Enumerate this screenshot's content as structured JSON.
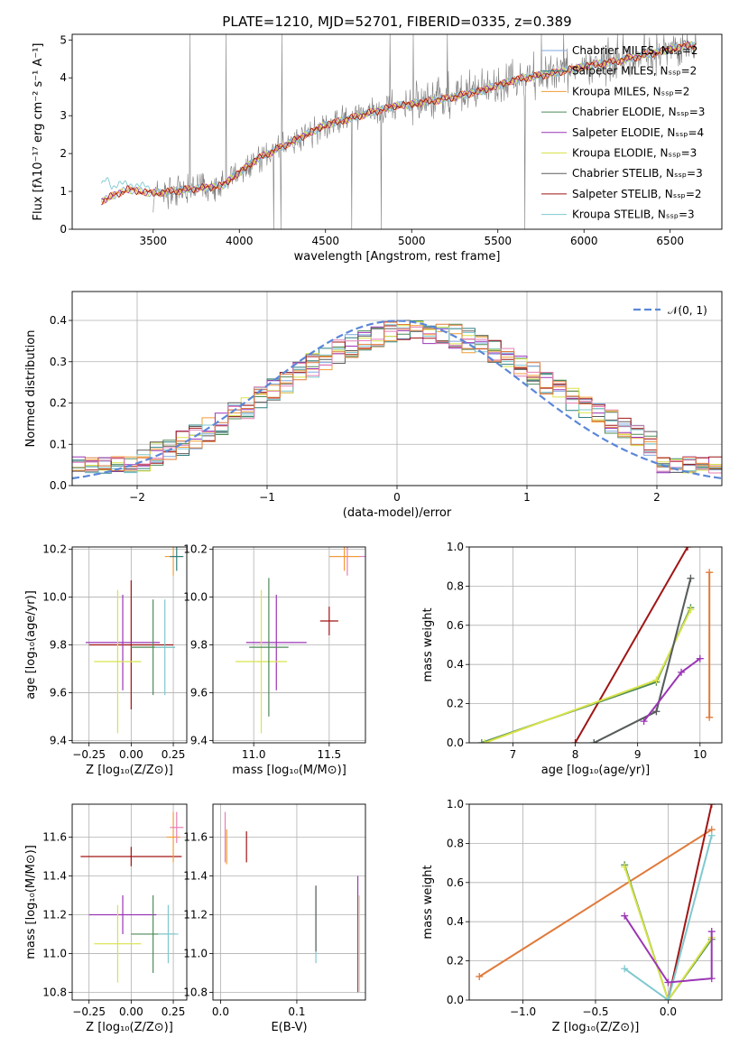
{
  "figure": {
    "title": "PLATE=1210, MJD=52701, FIBERID=0335, z=0.389"
  },
  "colors": {
    "chabrier_miles": "#7fa7e0",
    "salpeter_miles": "#2d7f7f",
    "kroupa_miles": "#f39c34",
    "chabrier_elodie": "#4d8a57",
    "salpeter_elodie": "#9b35b5",
    "kroupa_elodie": "#d8e34a",
    "chabrier_stelib": "#5b5b5b",
    "salpeter_stelib": "#a01515",
    "kroupa_stelib": "#7fc8cf",
    "data_gray": "#7f7f7f",
    "normal_curve": "#5b87d8",
    "extra_pink": "#e57fb6",
    "extra_orange": "#e07a3a"
  },
  "chart_data": [
    {
      "id": "spectrum",
      "type": "line",
      "xlabel": "wavelength [Angstrom, rest frame]",
      "ylabel": "Flux [fλ10⁻¹⁷ erg cm⁻² s⁻¹ A⁻¹]",
      "xlim": [
        3030,
        6800
      ],
      "ylim": [
        0,
        5.15
      ],
      "xticks": [
        3500,
        4000,
        4500,
        5000,
        5500,
        6000,
        6500
      ],
      "yticks": [
        0,
        1,
        2,
        3,
        4,
        5
      ],
      "legend_position": "top-right",
      "legend": [
        "Chabrier MILES, Nₛₛₚ=2",
        "Salpeter MILES, Nₛₛₚ=2",
        "Kroupa MILES, Nₛₛₚ=2",
        "Chabrier ELODIE, Nₛₛₚ=3",
        "Salpeter ELODIE, Nₛₛₚ=4",
        "Kroupa ELODIE, Nₛₛₚ=3",
        "Chabrier STELIB, Nₛₛₚ=3",
        "Salpeter STELIB, Nₛₛₚ=2",
        "Kroupa STELIB, Nₛₛₚ=3"
      ],
      "continuum": {
        "x": [
          3200,
          3350,
          3500,
          3700,
          3900,
          4000,
          4100,
          4300,
          4500,
          4700,
          4900,
          5000,
          5200,
          5400,
          5600,
          5800,
          6000,
          6200,
          6400,
          6600
        ],
        "y": [
          0.75,
          1.05,
          0.95,
          1.05,
          1.15,
          1.5,
          1.85,
          2.3,
          2.75,
          3.0,
          3.25,
          3.3,
          3.45,
          3.65,
          3.95,
          4.1,
          4.3,
          4.45,
          4.65,
          4.85
        ]
      },
      "kroupa_stelib_blue": {
        "x": [
          3200,
          3230,
          3260,
          3300,
          3350,
          3400,
          3500
        ],
        "y": [
          1.2,
          1.3,
          1.1,
          1.25,
          1.15,
          1.2,
          1.05
        ]
      }
    },
    {
      "id": "residuals",
      "type": "line",
      "xlabel": "(data-model)/error",
      "ylabel": "Normed distribution",
      "xlim": [
        -2.5,
        2.5
      ],
      "ylim": [
        0,
        0.47
      ],
      "xticks": [
        -2,
        -1,
        0,
        1,
        2
      ],
      "yticks": [
        0.0,
        0.1,
        0.2,
        0.3,
        0.4
      ],
      "legend_position": "top-right",
      "normal_label": "𝒩(0, 1)"
    },
    {
      "id": "age_vs_Z",
      "type": "scatter",
      "xlabel": "Z [log₁₀(Z/Z⊙)]",
      "ylabel": "age  [log₁₀(age/yr)]",
      "xlim": [
        -0.35,
        0.33
      ],
      "ylim": [
        9.39,
        10.21
      ],
      "xticks": [
        -0.25,
        0.0,
        0.25
      ],
      "yticks": [
        9.4,
        9.6,
        9.8,
        10.0,
        10.2
      ],
      "points": [
        {
          "x": 0.0,
          "y": 9.8,
          "xerr": 0.25,
          "yerr": 0.27,
          "series": "salpeter_stelib"
        },
        {
          "x": -0.05,
          "y": 9.81,
          "xerr": 0.22,
          "yerr": 0.2,
          "series": "salpeter_elodie"
        },
        {
          "x": 0.13,
          "y": 9.79,
          "xerr": 0.13,
          "yerr": 0.2,
          "series": "chabrier_elodie"
        },
        {
          "x": -0.08,
          "y": 9.73,
          "xerr": 0.14,
          "yerr": 0.3,
          "series": "kroupa_elodie"
        },
        {
          "x": 0.25,
          "y": 10.17,
          "xerr": 0.05,
          "yerr": 0.08,
          "series": "kroupa_miles"
        },
        {
          "x": 0.27,
          "y": 10.17,
          "xerr": 0.04,
          "yerr": 0.06,
          "series": "salpeter_miles"
        },
        {
          "x": 0.2,
          "y": 9.79,
          "xerr": 0.06,
          "yerr": 0.2,
          "series": "kroupa_stelib"
        }
      ]
    },
    {
      "id": "age_vs_mass",
      "type": "scatter",
      "xlabel": "mass [log₁₀(M/M⊙)]",
      "ylabel": "",
      "xlim": [
        10.73,
        11.74
      ],
      "ylim": [
        9.39,
        10.21
      ],
      "xticks": [
        11.0,
        11.5
      ],
      "yticks": [
        9.4,
        9.6,
        9.8,
        10.0,
        10.2
      ],
      "points": [
        {
          "x": 11.15,
          "y": 9.81,
          "xerr": 0.2,
          "yerr": 0.2,
          "series": "salpeter_elodie"
        },
        {
          "x": 11.05,
          "y": 9.73,
          "xerr": 0.17,
          "yerr": 0.3,
          "series": "kroupa_elodie"
        },
        {
          "x": 11.1,
          "y": 9.79,
          "xerr": 0.13,
          "yerr": 0.29,
          "series": "chabrier_elodie"
        },
        {
          "x": 11.5,
          "y": 9.9,
          "xerr": 0.06,
          "yerr": 0.06,
          "series": "salpeter_stelib"
        },
        {
          "x": 11.62,
          "y": 10.17,
          "xerr": 0.12,
          "yerr": 0.08,
          "series": "extra_pink"
        },
        {
          "x": 11.6,
          "y": 10.17,
          "xerr": 0.1,
          "yerr": 0.06,
          "series": "kroupa_miles"
        }
      ]
    },
    {
      "id": "weight_vs_age",
      "type": "line",
      "xlabel": "age  [log₁₀(age/yr)]",
      "ylabel": "mass weight",
      "xlim": [
        6.3,
        10.35
      ],
      "ylim": [
        0,
        1.0
      ],
      "xticks": [
        7,
        8,
        9,
        10
      ],
      "yticks": [
        0.0,
        0.2,
        0.4,
        0.6,
        0.8,
        1.0
      ],
      "series": [
        {
          "name": "",
          "key": "salpeter_stelib",
          "x": [
            8.0,
            9.8
          ],
          "y": [
            0.0,
            1.0
          ]
        },
        {
          "name": "",
          "key": "chabrier_elodie",
          "x": [
            6.5,
            9.3,
            9.85
          ],
          "y": [
            0.0,
            0.31,
            0.69
          ]
        },
        {
          "name": "",
          "key": "kroupa_elodie",
          "x": [
            6.55,
            9.3,
            9.85
          ],
          "y": [
            0.0,
            0.32,
            0.68
          ]
        },
        {
          "name": "",
          "key": "kroupa_stelib",
          "x": [
            8.3,
            9.3,
            9.85
          ],
          "y": [
            0.0,
            0.16,
            0.84
          ]
        },
        {
          "name": "",
          "key": "chabrier_stelib",
          "x": [
            8.3,
            9.3,
            9.85
          ],
          "y": [
            0.0,
            0.16,
            0.84
          ]
        },
        {
          "name": "",
          "key": "salpeter_elodie",
          "x": [
            9.1,
            9.7,
            10.0
          ],
          "y": [
            0.11,
            0.36,
            0.43
          ]
        },
        {
          "name": "",
          "key": "extra_orange",
          "x": [
            10.15,
            10.15
          ],
          "y": [
            0.13,
            0.87
          ]
        }
      ]
    },
    {
      "id": "mass_vs_Z",
      "type": "scatter",
      "xlabel": "Z [log₁₀(Z/Z⊙)]",
      "ylabel": "mass [log₁₀(M/M⊙)]",
      "xlim": [
        -0.35,
        0.33
      ],
      "ylim": [
        10.76,
        11.77
      ],
      "xticks": [
        -0.25,
        0.0,
        0.25
      ],
      "yticks": [
        10.8,
        11.0,
        11.2,
        11.4,
        11.6
      ],
      "points": [
        {
          "x": 0.0,
          "y": 11.5,
          "xerr": 0.3,
          "yerr": 0.05,
          "series": "salpeter_stelib"
        },
        {
          "x": -0.05,
          "y": 11.2,
          "xerr": 0.2,
          "yerr": 0.1,
          "series": "salpeter_elodie"
        },
        {
          "x": 0.13,
          "y": 11.1,
          "xerr": 0.13,
          "yerr": 0.2,
          "series": "chabrier_elodie"
        },
        {
          "x": -0.08,
          "y": 11.05,
          "xerr": 0.14,
          "yerr": 0.2,
          "series": "kroupa_elodie"
        },
        {
          "x": 0.25,
          "y": 11.6,
          "xerr": 0.04,
          "yerr": 0.13,
          "series": "kroupa_miles"
        },
        {
          "x": 0.27,
          "y": 11.65,
          "xerr": 0.04,
          "yerr": 0.08,
          "series": "extra_pink"
        },
        {
          "x": 0.22,
          "y": 11.1,
          "xerr": 0.06,
          "yerr": 0.15,
          "series": "kroupa_stelib"
        }
      ]
    },
    {
      "id": "mass_vs_ebv",
      "type": "scatter",
      "xlabel": "E(B-V)",
      "ylabel": "",
      "xlim": [
        -0.01,
        0.19
      ],
      "ylim": [
        10.76,
        11.77
      ],
      "xticks": [
        0.0,
        0.1
      ],
      "yticks": [
        10.8,
        11.0,
        11.2,
        11.4,
        11.6
      ],
      "points": [
        {
          "x": 0.006,
          "y": 11.6,
          "xerr": 0.0,
          "yerr": 0.13,
          "series": "extra_pink"
        },
        {
          "x": 0.008,
          "y": 11.55,
          "xerr": 0.0,
          "yerr": 0.09,
          "series": "kroupa_miles"
        },
        {
          "x": 0.034,
          "y": 11.55,
          "xerr": 0.0,
          "yerr": 0.08,
          "series": "salpeter_stelib"
        },
        {
          "x": 0.125,
          "y": 11.15,
          "xerr": 0.0,
          "yerr": 0.2,
          "series": "kroupa_stelib"
        },
        {
          "x": 0.125,
          "y": 11.18,
          "xerr": 0.0,
          "yerr": 0.17,
          "series": "chabrier_stelib"
        },
        {
          "x": 0.18,
          "y": 11.1,
          "xerr": 0.0,
          "yerr": 0.3,
          "series": "salpeter_elodie"
        },
        {
          "x": 0.182,
          "y": 11.05,
          "xerr": 0.0,
          "yerr": 0.25,
          "series": "kroupa_elodie"
        }
      ]
    },
    {
      "id": "weight_vs_Z",
      "type": "line",
      "xlabel": "Z [log₁₀(Z/Z⊙)]",
      "ylabel": "mass weight",
      "xlim": [
        -1.37,
        0.37
      ],
      "ylim": [
        0,
        1.0
      ],
      "xticks": [
        -1.0,
        -0.5,
        0.0
      ],
      "yticks": [
        0.0,
        0.2,
        0.4,
        0.6,
        0.8,
        1.0
      ],
      "series": [
        {
          "name": "",
          "key": "extra_orange",
          "x": [
            -1.3,
            0.3
          ],
          "y": [
            0.12,
            0.87
          ]
        },
        {
          "name": "",
          "key": "salpeter_stelib",
          "x": [
            0.0,
            0.3
          ],
          "y": [
            0.0,
            1.0
          ]
        },
        {
          "name": "",
          "key": "chabrier_elodie",
          "x": [
            -0.3,
            0.0,
            0.3
          ],
          "y": [
            0.69,
            0.0,
            0.31
          ]
        },
        {
          "name": "",
          "key": "kroupa_elodie",
          "x": [
            -0.3,
            0.0,
            0.3
          ],
          "y": [
            0.68,
            0.0,
            0.32
          ]
        },
        {
          "name": "",
          "key": "kroupa_stelib",
          "x": [
            -0.3,
            0.0,
            0.3
          ],
          "y": [
            0.16,
            0.0,
            0.84
          ]
        },
        {
          "name": "",
          "key": "salpeter_elodie",
          "x": [
            -0.3,
            0.0,
            0.3,
            0.3
          ],
          "y": [
            0.43,
            0.09,
            0.11,
            0.35
          ]
        }
      ]
    }
  ]
}
